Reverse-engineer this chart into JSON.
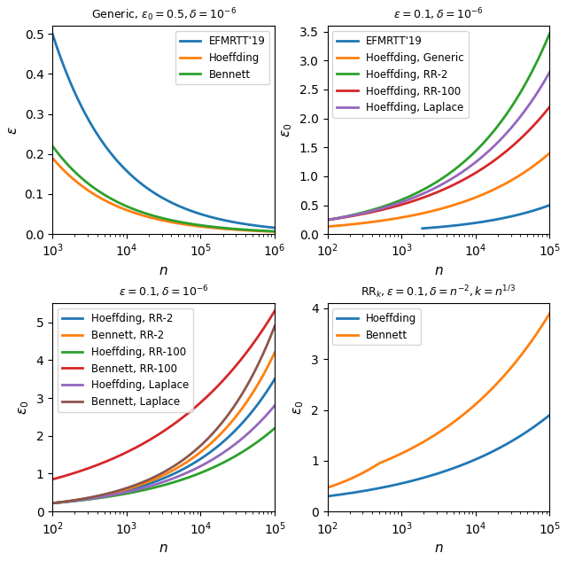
{
  "fig_width": 6.4,
  "fig_height": 6.33,
  "dpi": 100,
  "colors": {
    "blue": "#1f77b4",
    "orange": "#ff7f0e",
    "green": "#2ca02c",
    "red": "#d62728",
    "purple": "#9467bd",
    "brown": "#8c564b"
  },
  "tl_title": "Generic, $\\varepsilon_0 = 0.5, \\delta = 10^{-6}$",
  "tr_title": "$\\varepsilon = 0.1, \\delta = 10^{-6}$",
  "bl_title": "$\\varepsilon = 0.1, \\delta = 10^{-6}$",
  "br_title": "$\\mathrm{RR}_k, \\varepsilon = 0.1, \\delta = n^{-2}, k = n^{1/3}$"
}
